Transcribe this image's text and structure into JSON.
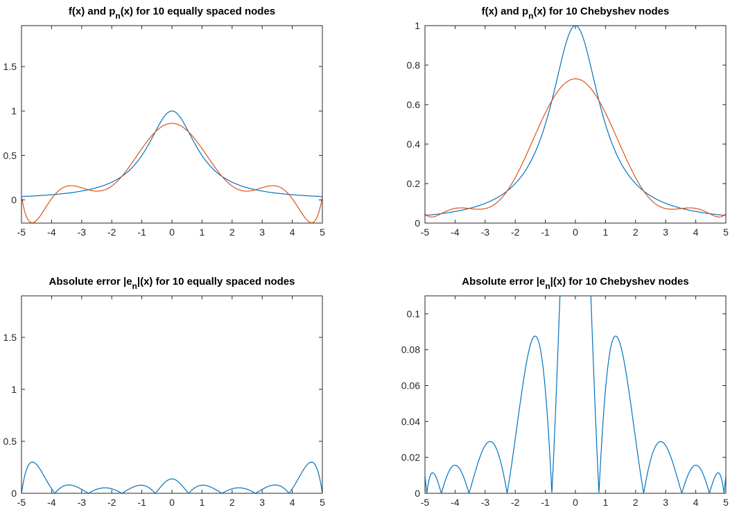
{
  "figure": {
    "background": "#ffffff"
  },
  "colors": {
    "f": "#0072BD",
    "p": "#D95319",
    "axis": "#262626"
  },
  "function": "1/(1+x^2)",
  "chart_data": [
    {
      "id": "p1",
      "type": "line",
      "title": {
        "pre": "f(x) and p",
        "sub": "n",
        "post": "(x) for 10 equally spaced nodes"
      },
      "xlim": [
        -5,
        5
      ],
      "ylim": [
        -0.26,
        1.96
      ],
      "xticks": [
        -5,
        -4,
        -3,
        -2,
        -1,
        0,
        1,
        2,
        3,
        4,
        5
      ],
      "xtick_labels": [
        "-5",
        "-4",
        "-3",
        "-2",
        "-1",
        "0",
        "1",
        "2",
        "3",
        "4",
        "5"
      ],
      "yticks": [
        0,
        0.5,
        1,
        1.5
      ],
      "ytick_labels": [
        "0",
        "0.5",
        "1",
        "1.5"
      ],
      "node_type": "equispaced",
      "n_nodes": 10,
      "series": [
        {
          "kind": "f",
          "color": "#0072BD"
        },
        {
          "kind": "p",
          "color": "#D95319"
        }
      ],
      "grid": false
    },
    {
      "id": "p2",
      "type": "line",
      "title": {
        "pre": "f(x) and p",
        "sub": "n",
        "post": "(x) for 10 Chebyshev nodes"
      },
      "xlim": [
        -5,
        5
      ],
      "ylim": [
        0,
        1
      ],
      "xticks": [
        -5,
        -4,
        -3,
        -2,
        -1,
        0,
        1,
        2,
        3,
        4,
        5
      ],
      "xtick_labels": [
        "-5",
        "-4",
        "-3",
        "-2",
        "-1",
        "0",
        "1",
        "2",
        "3",
        "4",
        "5"
      ],
      "yticks": [
        0,
        0.2,
        0.4,
        0.6,
        0.8,
        1
      ],
      "ytick_labels": [
        "0",
        "0.2",
        "0.4",
        "0.6",
        "0.8",
        "1"
      ],
      "node_type": "chebyshev",
      "n_nodes": 10,
      "series": [
        {
          "kind": "f",
          "color": "#0072BD"
        },
        {
          "kind": "p",
          "color": "#D95319"
        }
      ],
      "grid": false
    },
    {
      "id": "p3",
      "type": "line",
      "title": {
        "pre": "Absolute error |e",
        "sub": "n",
        "post": "|(x) for 10 equally spaced nodes"
      },
      "xlim": [
        -5,
        5
      ],
      "ylim": [
        0,
        1.9
      ],
      "xticks": [
        -5,
        -4,
        -3,
        -2,
        -1,
        0,
        1,
        2,
        3,
        4,
        5
      ],
      "xtick_labels": [
        "-5",
        "-4",
        "-3",
        "-2",
        "-1",
        "0",
        "1",
        "2",
        "3",
        "4",
        "5"
      ],
      "yticks": [
        0,
        0.5,
        1,
        1.5
      ],
      "ytick_labels": [
        "0",
        "0.5",
        "1",
        "1.5"
      ],
      "node_type": "equispaced",
      "n_nodes": 10,
      "series": [
        {
          "kind": "err",
          "color": "#0072BD"
        }
      ],
      "grid": false
    },
    {
      "id": "p4",
      "type": "line",
      "title": {
        "pre": "Absolute error |e",
        "sub": "n",
        "post": "|(x) for 10 Chebyshev nodes"
      },
      "xlim": [
        -5,
        5
      ],
      "ylim": [
        0,
        0.11
      ],
      "xticks": [
        -5,
        -4,
        -3,
        -2,
        -1,
        0,
        1,
        2,
        3,
        4,
        5
      ],
      "xtick_labels": [
        "-5",
        "-4",
        "-3",
        "-2",
        "-1",
        "0",
        "1",
        "2",
        "3",
        "4",
        "5"
      ],
      "yticks": [
        0,
        0.02,
        0.04,
        0.06,
        0.08,
        0.1
      ],
      "ytick_labels": [
        "0",
        "0.02",
        "0.04",
        "0.06",
        "0.08",
        "0.1"
      ],
      "node_type": "chebyshev",
      "n_nodes": 10,
      "series": [
        {
          "kind": "err",
          "color": "#0072BD"
        }
      ],
      "grid": false
    }
  ]
}
